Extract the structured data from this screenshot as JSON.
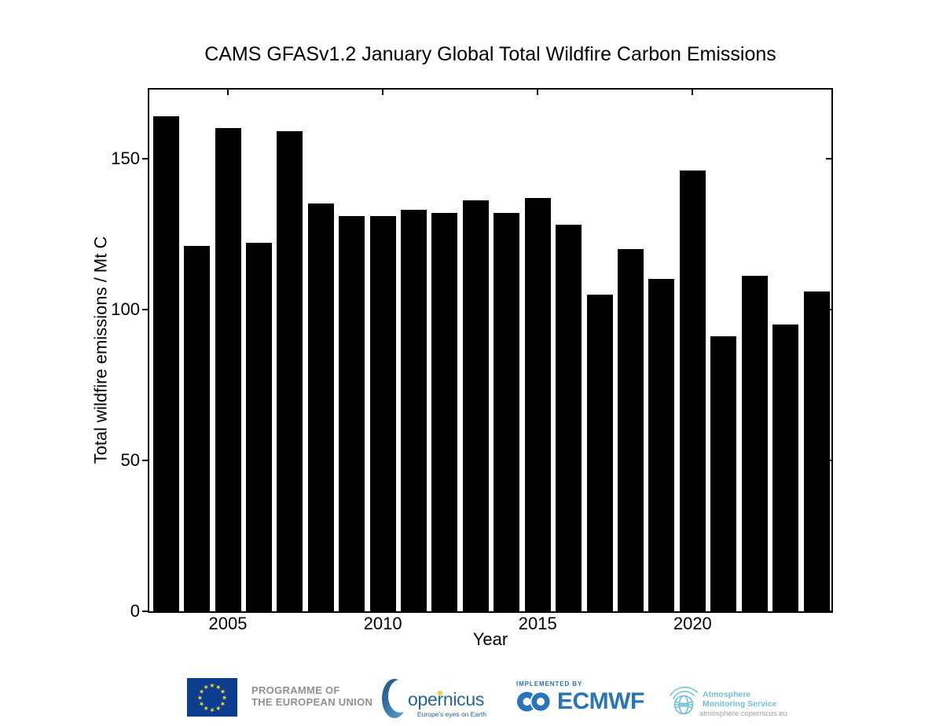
{
  "chart_data": {
    "type": "bar",
    "title": "CAMS GFASv1.2 January Global Total Wildfire Carbon Emissions",
    "xlabel": "Year",
    "ylabel": "Total wildfire emissions / Mt C",
    "x": [
      2003,
      2004,
      2005,
      2006,
      2007,
      2008,
      2009,
      2010,
      2011,
      2012,
      2013,
      2014,
      2015,
      2016,
      2017,
      2018,
      2019,
      2020,
      2021,
      2022,
      2023,
      2024
    ],
    "values": [
      164,
      121,
      160,
      122,
      159,
      135,
      131,
      131,
      133,
      132,
      136,
      132,
      137,
      128,
      105,
      120,
      110,
      146,
      91,
      111,
      95,
      106
    ],
    "xticks": [
      2005,
      2010,
      2015,
      2020
    ],
    "yticks": [
      0,
      50,
      100,
      150
    ],
    "ylim": [
      0,
      173
    ],
    "xlim": [
      2002.5,
      2024.5
    ],
    "grid": false,
    "bar_color": "#000000",
    "legend": null
  },
  "footer": {
    "eu": {
      "programme_line1": "PROGRAMME OF",
      "programme_line2": "THE EUROPEAN UNION"
    },
    "copernicus": {
      "wordmark": "opernicus",
      "tagline": "Europe's eyes on Earth"
    },
    "ecmwf": {
      "implemented_by": "IMPLEMENTED BY",
      "name": "ECMWF"
    },
    "ams": {
      "line1": "Atmosphere",
      "line2": "Monitoring Service",
      "url": "atmosphere.copernicus.eu"
    }
  },
  "icons": {
    "eu_star_glyph": "★"
  },
  "colors": {
    "bar": "#000000",
    "eu_blue": "#0d3d8f",
    "star_yellow": "#f8d12e",
    "gray_text": "#8e9093",
    "copernicus_blue": "#25649c",
    "ecmwf_blue": "#2a74b8",
    "ams_teal": "#72c0d6",
    "url_gray": "#9aa1a6"
  }
}
